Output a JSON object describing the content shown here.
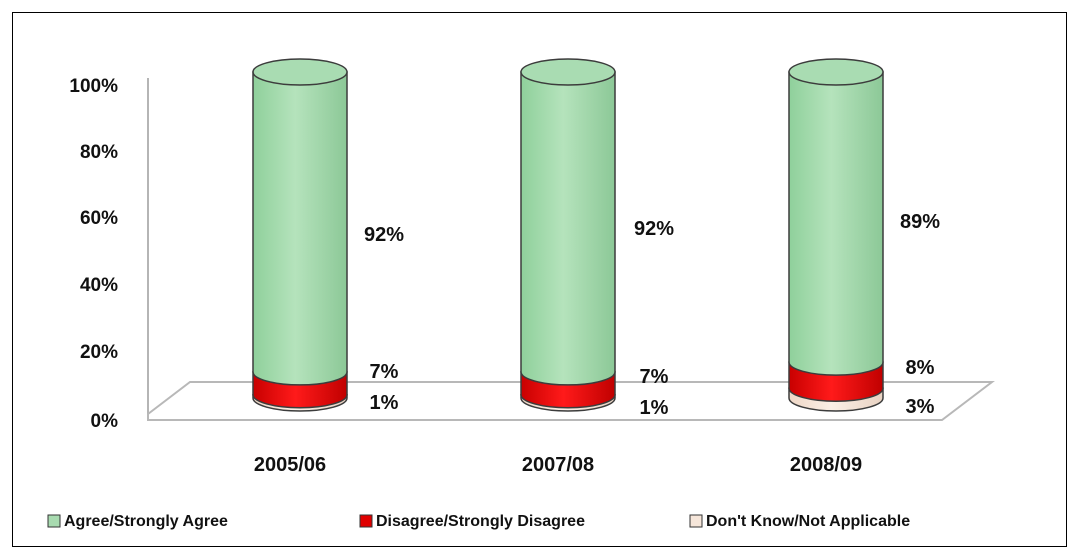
{
  "chart_data": {
    "type": "bar",
    "stacked": true,
    "style": "3d-cylinder",
    "categories": [
      "2005/06",
      "2007/08",
      "2008/09"
    ],
    "series": [
      {
        "name": "Don't Know/Not Applicable",
        "values": [
          1,
          1,
          3
        ],
        "labels": [
          "1%",
          "1%",
          "3%"
        ]
      },
      {
        "name": "Disagree/Strongly Disagree",
        "values": [
          7,
          7,
          8
        ],
        "labels": [
          "7%",
          "7%",
          "8%"
        ]
      },
      {
        "name": "Agree/Strongly Agree",
        "values": [
          92,
          92,
          89
        ],
        "labels": [
          "92%",
          "92%",
          "89%"
        ]
      }
    ],
    "yticks": [
      "0%",
      "20%",
      "40%",
      "60%",
      "80%",
      "100%"
    ],
    "ylim": [
      0,
      100
    ],
    "grid": false,
    "legend_position": "bottom",
    "colors": {
      "Agree/Strongly Agree": "#a8dbb0",
      "Disagree/Strongly Disagree": "#e00000",
      "Don't Know/Not Applicable": "#f6e6da"
    }
  }
}
